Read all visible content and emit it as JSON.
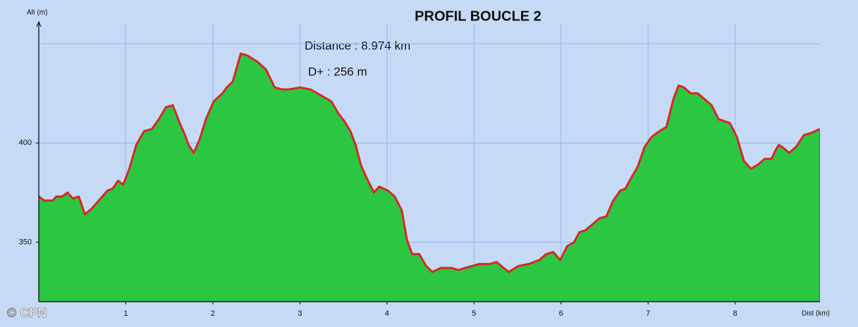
{
  "chart_data": {
    "type": "area",
    "title": "PROFIL BOUCLE 2",
    "annotations": [
      "Distance  : 8.974 km",
      "D+ :  256 m"
    ],
    "watermark": "© CPN",
    "x_label": "Dist (km)",
    "y_label": "Alt (m)",
    "x": [
      0,
      0.06,
      0.16,
      0.2,
      0.27,
      0.33,
      0.39,
      0.46,
      0.53,
      0.61,
      0.69,
      0.79,
      0.85,
      0.91,
      0.97,
      1.04,
      1.12,
      1.21,
      1.3,
      1.38,
      1.46,
      1.54,
      1.62,
      1.68,
      1.72,
      1.78,
      1.85,
      1.92,
      2.01,
      2.11,
      2.16,
      2.23,
      2.32,
      2.4,
      2.51,
      2.61,
      2.71,
      2.79,
      2.87,
      3,
      3.12,
      3.24,
      3.36,
      3.44,
      3.51,
      3.58,
      3.64,
      3.7,
      3.77,
      3.85,
      3.91,
      4.01,
      4.09,
      4.17,
      4.23,
      4.29,
      4.37,
      4.45,
      4.52,
      4.62,
      4.74,
      4.82,
      4.9,
      4.98,
      5.06,
      5.18,
      5.26,
      5.34,
      5.4,
      5.51,
      5.63,
      5.75,
      5.83,
      5.91,
      5.99,
      6.07,
      6.15,
      6.21,
      6.28,
      6.36,
      6.44,
      6.52,
      6.6,
      6.68,
      6.74,
      6.8,
      6.88,
      6.96,
      7.04,
      7.13,
      7.21,
      7.29,
      7.35,
      7.41,
      7.49,
      7.57,
      7.65,
      7.73,
      7.81,
      7.94,
      8.02,
      8.1,
      8.18,
      8.26,
      8.34,
      8.42,
      8.46,
      8.5,
      8.54,
      8.62,
      8.7,
      8.79,
      8.87,
      8.97
    ],
    "values": [
      373,
      371,
      371,
      373,
      373,
      375,
      372,
      373,
      364,
      367,
      371,
      376,
      377,
      381,
      379,
      387,
      399,
      406,
      407,
      412,
      418,
      419,
      410,
      404,
      399,
      395,
      402,
      412,
      421,
      425,
      428,
      431,
      445,
      444,
      441,
      437,
      428,
      427,
      427,
      428,
      427,
      424,
      421,
      415,
      411,
      406,
      399,
      389,
      382,
      375,
      378,
      376,
      373,
      366,
      351,
      344,
      344,
      338,
      335,
      337,
      337,
      336,
      337,
      338,
      339,
      339,
      340,
      337,
      335,
      338,
      339,
      341,
      344,
      345,
      341,
      348,
      350,
      355,
      356,
      359,
      362,
      363,
      371,
      376,
      377,
      382,
      388,
      398,
      403,
      406,
      408,
      422,
      429,
      428,
      425,
      425,
      422,
      419,
      412,
      410,
      403,
      391,
      387,
      389,
      392,
      392,
      396,
      399,
      398,
      395,
      398,
      404,
      405,
      407
    ],
    "color": "#2bc642",
    "line_color": "#d42a22",
    "xlim": [
      0,
      8.974
    ],
    "ylim": [
      320,
      460
    ],
    "xticks": [
      1,
      2,
      3,
      4,
      5,
      6,
      7,
      8
    ],
    "yticks": [
      350,
      400
    ],
    "ygrid": [
      350,
      400,
      450
    ],
    "grid": true
  }
}
